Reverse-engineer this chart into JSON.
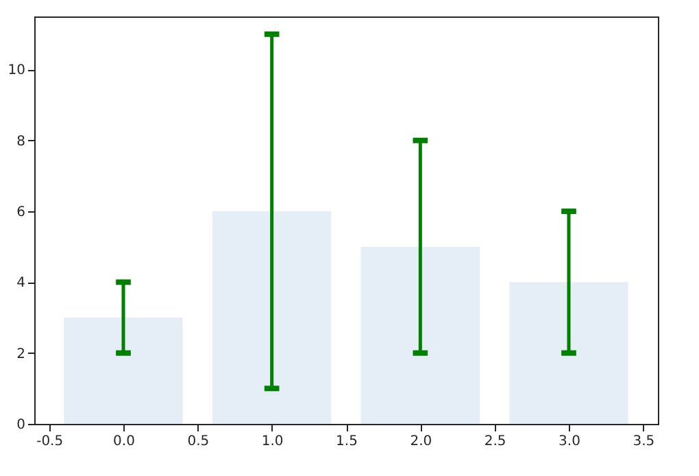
{
  "chart_data": {
    "type": "bar",
    "x": [
      0,
      1,
      2,
      3
    ],
    "values": [
      3,
      6,
      5,
      4
    ],
    "color": "#e5eef7",
    "errors": [
      [
        2,
        4
      ],
      [
        1,
        11
      ],
      [
        2,
        8
      ],
      [
        2,
        6
      ]
    ],
    "xlim": [
      -0.6,
      3.6
    ],
    "xticks": [
      -0.5,
      {
        "value": 0,
        "label": "0.0"
      },
      0.5,
      {
        "value": 1,
        "label": "1.0"
      },
      1.5,
      {
        "value": 2,
        "label": "2.0"
      },
      2.5,
      {
        "value": 3,
        "label": "3.0"
      },
      3.5
    ],
    "ylim": [
      0,
      11.5
    ],
    "yticks": [
      0,
      2,
      4,
      6,
      8,
      10
    ],
    "grid": false
  }
}
